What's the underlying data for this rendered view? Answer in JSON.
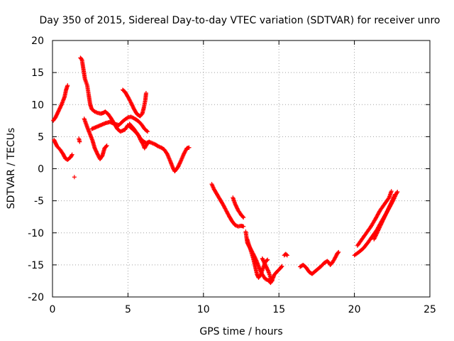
{
  "chart_data": {
    "type": "scatter",
    "title": "Day 350 of 2015, Sidereal Day-to-day VTEC variation (SDTVAR) for receiver unro",
    "xlabel": "GPS time / hours",
    "ylabel": "SDTVAR / TECUs",
    "xlim": [
      0,
      25
    ],
    "ylim": [
      -20,
      20
    ],
    "xticks": [
      "0",
      "5",
      "10",
      "15",
      "20",
      "25"
    ],
    "yticks": [
      "20",
      "15",
      "10",
      "5",
      "0",
      "-5",
      "-10",
      "-15",
      "-20"
    ],
    "grid": true,
    "marker": "plus",
    "color": "#ff0000",
    "segments": [
      [
        [
          0.05,
          7.5
        ],
        [
          0.2,
          8.0
        ],
        [
          0.4,
          9.0
        ],
        [
          0.6,
          10.0
        ],
        [
          0.8,
          11.2
        ],
        [
          0.9,
          12.3
        ],
        [
          1.0,
          13.0
        ]
      ],
      [
        [
          0.1,
          4.5
        ],
        [
          0.2,
          4.0
        ],
        [
          0.3,
          3.5
        ],
        [
          0.5,
          3.0
        ],
        [
          0.7,
          2.3
        ],
        [
          0.85,
          1.6
        ],
        [
          1.0,
          1.4
        ],
        [
          1.2,
          1.8
        ],
        [
          1.3,
          2.2
        ]
      ],
      [
        [
          1.45,
          -1.3
        ]
      ],
      [
        [
          1.75,
          4.7
        ],
        [
          1.8,
          4.2
        ]
      ],
      [
        [
          1.85,
          17.3
        ],
        [
          1.95,
          17.0
        ],
        [
          2.05,
          15.5
        ],
        [
          2.15,
          14.0
        ],
        [
          2.3,
          13.0
        ],
        [
          2.4,
          11.5
        ],
        [
          2.5,
          10.0
        ],
        [
          2.6,
          9.3
        ],
        [
          2.8,
          8.9
        ],
        [
          3.0,
          8.7
        ],
        [
          3.2,
          8.6
        ],
        [
          3.35,
          8.7
        ],
        [
          3.5,
          8.9
        ],
        [
          3.7,
          8.5
        ],
        [
          3.9,
          7.8
        ],
        [
          4.1,
          7.0
        ],
        [
          4.3,
          6.2
        ],
        [
          4.5,
          5.8
        ],
        [
          4.8,
          6.1
        ],
        [
          5.0,
          6.8
        ],
        [
          5.3,
          6.2
        ],
        [
          5.6,
          5.5
        ],
        [
          5.8,
          4.8
        ],
        [
          6.0,
          4.3
        ],
        [
          6.2,
          4.0
        ],
        [
          6.4,
          4.2
        ],
        [
          6.6,
          4.0
        ],
        [
          6.8,
          3.8
        ],
        [
          7.0,
          3.5
        ],
        [
          7.2,
          3.3
        ],
        [
          7.4,
          3.0
        ],
        [
          7.6,
          2.3
        ],
        [
          7.8,
          1.2
        ],
        [
          8.0,
          0.0
        ],
        [
          8.1,
          -0.4
        ],
        [
          8.3,
          0.2
        ],
        [
          8.5,
          1.2
        ],
        [
          8.7,
          2.3
        ],
        [
          8.9,
          3.2
        ],
        [
          9.05,
          3.3
        ]
      ],
      [
        [
          2.1,
          7.8
        ],
        [
          2.3,
          6.5
        ],
        [
          2.5,
          5.3
        ],
        [
          2.65,
          4.4
        ],
        [
          2.8,
          3.2
        ],
        [
          3.0,
          2.2
        ],
        [
          3.15,
          1.5
        ],
        [
          3.3,
          2.0
        ],
        [
          3.45,
          3.2
        ],
        [
          3.6,
          3.6
        ]
      ],
      [
        [
          2.6,
          6.2
        ],
        [
          2.9,
          6.5
        ],
        [
          3.2,
          6.8
        ],
        [
          3.5,
          7.1
        ],
        [
          3.8,
          7.3
        ],
        [
          4.1,
          7.0
        ],
        [
          4.4,
          6.8
        ],
        [
          4.7,
          7.5
        ],
        [
          5.0,
          8.0
        ],
        [
          5.2,
          8.1
        ],
        [
          5.45,
          7.8
        ],
        [
          5.7,
          7.4
        ],
        [
          5.9,
          6.9
        ],
        [
          6.1,
          6.2
        ],
        [
          6.3,
          5.8
        ]
      ],
      [
        [
          4.65,
          12.3
        ],
        [
          4.8,
          12.0
        ],
        [
          5.0,
          11.2
        ],
        [
          5.2,
          10.3
        ],
        [
          5.4,
          9.3
        ],
        [
          5.6,
          8.5
        ],
        [
          5.8,
          8.2
        ],
        [
          5.95,
          8.6
        ],
        [
          6.05,
          9.5
        ],
        [
          6.15,
          10.7
        ],
        [
          6.2,
          11.8
        ]
      ],
      [
        [
          5.1,
          7.0
        ],
        [
          5.4,
          6.2
        ],
        [
          5.7,
          5.2
        ],
        [
          5.85,
          4.4
        ],
        [
          6.0,
          3.8
        ],
        [
          6.1,
          3.2
        ],
        [
          6.25,
          3.8
        ],
        [
          6.4,
          4.2
        ]
      ],
      [
        [
          10.55,
          -2.4
        ],
        [
          10.7,
          -3.2
        ],
        [
          10.9,
          -4.0
        ],
        [
          11.1,
          -4.8
        ],
        [
          11.3,
          -5.6
        ],
        [
          11.5,
          -6.5
        ],
        [
          11.7,
          -7.4
        ],
        [
          11.9,
          -8.2
        ],
        [
          12.1,
          -8.8
        ],
        [
          12.3,
          -9.0
        ],
        [
          12.5,
          -8.9
        ],
        [
          12.65,
          -9.0
        ]
      ],
      [
        [
          11.95,
          -4.5
        ],
        [
          12.1,
          -5.5
        ],
        [
          12.3,
          -6.5
        ],
        [
          12.5,
          -7.2
        ],
        [
          12.65,
          -7.6
        ]
      ],
      [
        [
          12.8,
          -9.8
        ],
        [
          12.9,
          -11.5
        ],
        [
          13.0,
          -12.0
        ],
        [
          13.1,
          -12.4
        ],
        [
          13.3,
          -13.3
        ],
        [
          13.5,
          -14.3
        ],
        [
          13.7,
          -15.5
        ],
        [
          13.9,
          -16.5
        ],
        [
          14.1,
          -17.2
        ],
        [
          14.3,
          -17.4
        ],
        [
          14.45,
          -17.8
        ],
        [
          14.55,
          -17.4
        ],
        [
          14.7,
          -16.5
        ],
        [
          14.9,
          -16.0
        ],
        [
          15.1,
          -15.5
        ],
        [
          15.2,
          -15.2
        ]
      ],
      [
        [
          12.9,
          -11.0
        ],
        [
          13.1,
          -12.5
        ],
        [
          13.3,
          -14.0
        ],
        [
          13.45,
          -15.5
        ],
        [
          13.55,
          -16.5
        ],
        [
          13.65,
          -17.0
        ],
        [
          13.8,
          -16.5
        ],
        [
          13.95,
          -15.5
        ],
        [
          14.1,
          -14.5
        ],
        [
          14.25,
          -14.2
        ]
      ],
      [
        [
          13.9,
          -14.0
        ],
        [
          14.1,
          -15.0
        ],
        [
          14.3,
          -16.0
        ],
        [
          14.45,
          -17.0
        ],
        [
          14.55,
          -17.5
        ]
      ],
      [
        [
          15.35,
          -13.5
        ],
        [
          15.45,
          -13.3
        ],
        [
          15.55,
          -13.5
        ]
      ],
      [
        [
          16.4,
          -15.3
        ],
        [
          16.6,
          -15.0
        ],
        [
          16.8,
          -15.4
        ],
        [
          17.0,
          -16.1
        ],
        [
          17.2,
          -16.4
        ],
        [
          17.4,
          -16.0
        ],
        [
          17.6,
          -15.6
        ],
        [
          17.8,
          -15.2
        ],
        [
          18.0,
          -14.7
        ],
        [
          18.2,
          -14.4
        ],
        [
          18.3,
          -14.6
        ],
        [
          18.4,
          -15.0
        ],
        [
          18.55,
          -14.6
        ],
        [
          18.7,
          -14.0
        ],
        [
          18.85,
          -13.3
        ],
        [
          18.95,
          -13.0
        ]
      ],
      [
        [
          20.0,
          -13.5
        ],
        [
          20.3,
          -13.0
        ],
        [
          20.6,
          -12.4
        ],
        [
          20.9,
          -11.5
        ],
        [
          21.2,
          -10.5
        ],
        [
          21.5,
          -9.5
        ],
        [
          21.8,
          -8.2
        ],
        [
          22.1,
          -7.0
        ],
        [
          22.4,
          -5.7
        ],
        [
          22.6,
          -4.8
        ],
        [
          22.75,
          -4.0
        ],
        [
          22.85,
          -3.6
        ]
      ],
      [
        [
          20.2,
          -12.0
        ],
        [
          20.5,
          -11.0
        ],
        [
          20.8,
          -10.0
        ],
        [
          21.1,
          -9.0
        ],
        [
          21.4,
          -7.8
        ],
        [
          21.7,
          -6.5
        ],
        [
          22.0,
          -5.5
        ],
        [
          22.3,
          -4.5
        ],
        [
          22.45,
          -3.5
        ]
      ],
      [
        [
          21.3,
          -11.0
        ],
        [
          21.6,
          -9.5
        ],
        [
          21.9,
          -8.0
        ],
        [
          22.2,
          -6.5
        ],
        [
          22.5,
          -5.0
        ],
        [
          22.7,
          -4.0
        ]
      ]
    ]
  }
}
